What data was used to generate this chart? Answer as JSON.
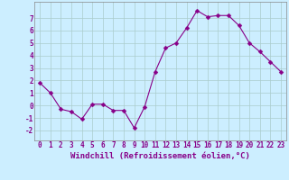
{
  "x": [
    0,
    1,
    2,
    3,
    4,
    5,
    6,
    7,
    8,
    9,
    10,
    11,
    12,
    13,
    14,
    15,
    16,
    17,
    18,
    19,
    20,
    21,
    22,
    23
  ],
  "y": [
    1.8,
    1.0,
    -0.3,
    -0.5,
    -1.1,
    0.1,
    0.1,
    -0.4,
    -0.4,
    -1.8,
    -0.1,
    2.7,
    4.6,
    5.0,
    6.2,
    7.6,
    7.1,
    7.2,
    7.2,
    6.4,
    5.0,
    4.3,
    3.5,
    2.7
  ],
  "line_color": "#880088",
  "marker": "D",
  "marker_size": 2.5,
  "bg_color": "#cceeff",
  "grid_color": "#aacccc",
  "xlabel": "Windchill (Refroidissement éolien,°C)",
  "ylabel": "",
  "title": "",
  "xlim": [
    -0.5,
    23.5
  ],
  "ylim": [
    -2.8,
    8.3
  ],
  "xticks": [
    0,
    1,
    2,
    3,
    4,
    5,
    6,
    7,
    8,
    9,
    10,
    11,
    12,
    13,
    14,
    15,
    16,
    17,
    18,
    19,
    20,
    21,
    22,
    23
  ],
  "yticks": [
    -2,
    -1,
    0,
    1,
    2,
    3,
    4,
    5,
    6,
    7
  ],
  "tick_fontsize": 5.5,
  "xlabel_fontsize": 6.5,
  "tick_color": "#880088",
  "axis_color": "#880088",
  "spine_color": "#888888"
}
